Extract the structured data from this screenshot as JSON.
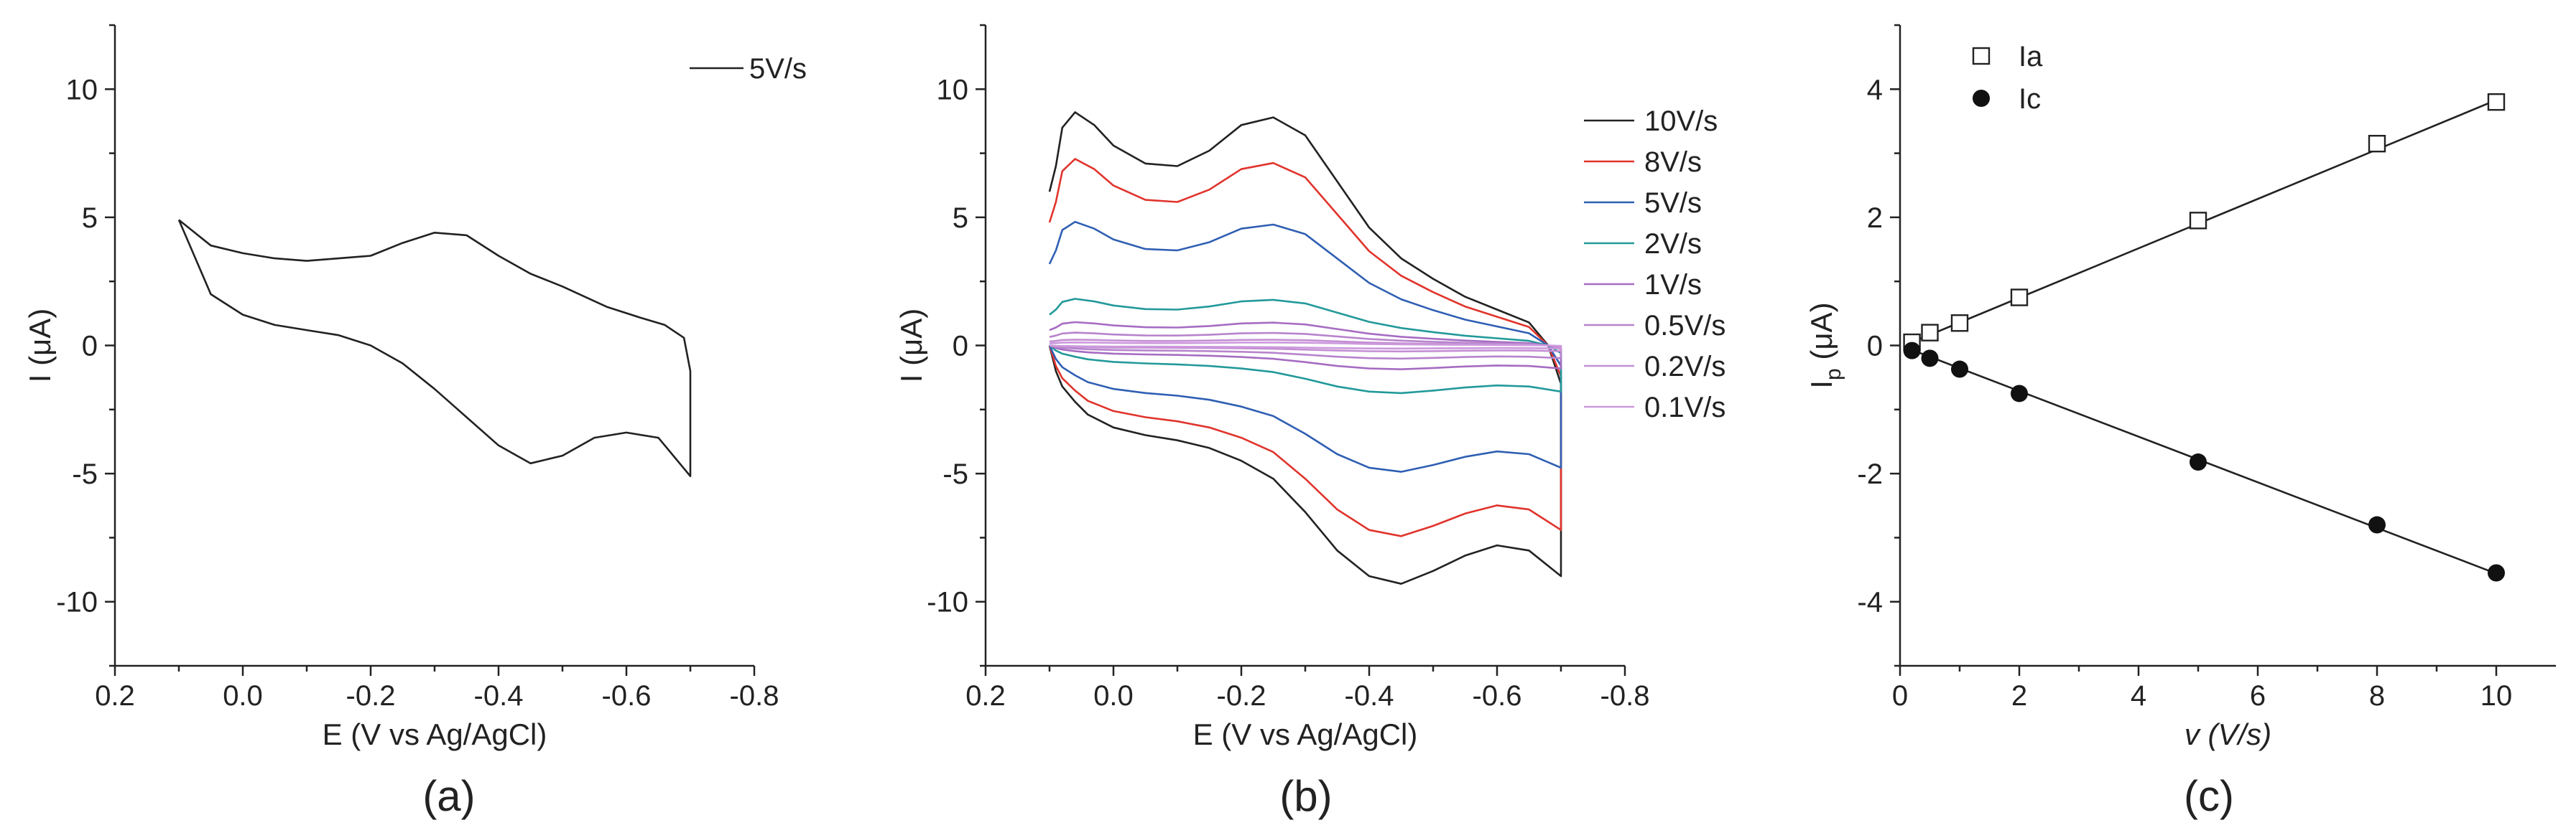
{
  "chart_data": [
    {
      "id": "a",
      "type": "line",
      "panel_label": "(a)",
      "xlabel": "E (V vs Ag/AgCl)",
      "ylabel": "I (μA)",
      "xlim": [
        0.2,
        -0.8
      ],
      "ylim": [
        12.5,
        -12.5
      ],
      "x_ticks": [
        0.2,
        0.0,
        -0.2,
        -0.4,
        -0.6,
        -0.8
      ],
      "x_tick_labels": [
        "0.2",
        "0.0",
        "-0.2",
        "-0.4",
        "-0.6",
        "-0.8"
      ],
      "y_ticks": [
        -10,
        -5,
        0,
        5,
        10
      ],
      "y_tick_labels": [
        "-10",
        "-5",
        "0",
        "5",
        "10"
      ],
      "legend_position": "top-right",
      "series": [
        {
          "name": "5V/s",
          "color": "#222222",
          "x": [
            0.1,
            0.05,
            0.0,
            -0.05,
            -0.1,
            -0.15,
            -0.2,
            -0.25,
            -0.3,
            -0.35,
            -0.4,
            -0.45,
            -0.5,
            -0.55,
            -0.6,
            -0.65,
            -0.7,
            -0.7,
            -0.69,
            -0.66,
            -0.62,
            -0.57,
            -0.5,
            -0.45,
            -0.4,
            -0.35,
            -0.3,
            -0.25,
            -0.2,
            -0.15,
            -0.1,
            -0.05,
            0.0,
            0.05,
            0.1
          ],
          "y": [
            4.9,
            2.0,
            1.2,
            0.8,
            0.6,
            0.4,
            0.0,
            -0.7,
            -1.7,
            -2.8,
            -3.9,
            -4.6,
            -4.3,
            -3.6,
            -3.4,
            -3.6,
            -5.1,
            -1.0,
            0.3,
            0.8,
            1.1,
            1.5,
            2.3,
            2.8,
            3.5,
            4.3,
            4.4,
            4.0,
            3.5,
            3.4,
            3.3,
            3.4,
            3.6,
            3.9,
            4.9
          ]
        }
      ]
    },
    {
      "id": "b",
      "type": "line",
      "panel_label": "(b)",
      "xlabel": "E (V vs Ag/AgCl)",
      "ylabel": "I (μA)",
      "xlim": [
        0.2,
        -0.8
      ],
      "ylim": [
        12.5,
        -12.5
      ],
      "x_ticks": [
        0.2,
        0.0,
        -0.2,
        -0.4,
        -0.6,
        -0.8
      ],
      "x_tick_labels": [
        "0.2",
        "0.0",
        "-0.2",
        "-0.4",
        "-0.6",
        "-0.8"
      ],
      "y_ticks": [
        -10,
        -5,
        0,
        5,
        10
      ],
      "y_tick_labels": [
        "-10",
        "-5",
        "0",
        "5",
        "10"
      ],
      "legend_position": "top-right",
      "base_shape": {
        "upper_x": [
          0.1,
          0.09,
          0.08,
          0.06,
          0.04,
          0.0,
          -0.05,
          -0.1,
          -0.15,
          -0.2,
          -0.25,
          -0.3,
          -0.35,
          -0.4,
          -0.45,
          -0.5,
          -0.55,
          -0.6,
          -0.65,
          -0.7
        ],
        "upper_y": [
          0.0,
          -1.0,
          -1.6,
          -2.2,
          -2.7,
          -3.2,
          -3.5,
          -3.7,
          -4.0,
          -4.5,
          -5.2,
          -6.5,
          -8.0,
          -9.0,
          -9.3,
          -8.8,
          -8.2,
          -7.8,
          -8.0,
          -9.0
        ],
        "lower_x": [
          -0.7,
          -0.7,
          -0.68,
          -0.65,
          -0.6,
          -0.55,
          -0.5,
          -0.45,
          -0.4,
          -0.35,
          -0.3,
          -0.25,
          -0.2,
          -0.15,
          -0.1,
          -0.05,
          0.0,
          0.03,
          0.06,
          0.08,
          0.09,
          0.1
        ],
        "lower_y": [
          -9.0,
          -1.5,
          0.0,
          0.9,
          1.4,
          1.9,
          2.6,
          3.4,
          4.6,
          6.4,
          8.2,
          8.9,
          8.6,
          7.6,
          7.0,
          7.1,
          7.8,
          8.6,
          9.1,
          8.5,
          7.0,
          6.0
        ]
      },
      "series": [
        {
          "name": "10V/s",
          "color": "#222222",
          "scale": 1.0
        },
        {
          "name": "8V/s",
          "color": "#e0342c",
          "scale": 0.8
        },
        {
          "name": "5V/s",
          "color": "#2f5fb3",
          "scale": 0.53
        },
        {
          "name": "2V/s",
          "color": "#23999a",
          "scale": 0.2
        },
        {
          "name": "1V/s",
          "color": "#a66cc2",
          "scale": 0.1
        },
        {
          "name": "0.5V/s",
          "color": "#b784cc",
          "scale": 0.055
        },
        {
          "name": "0.2V/s",
          "color": "#c48fd4",
          "scale": 0.025
        },
        {
          "name": "0.1V/s",
          "color": "#cc99dd",
          "scale": 0.013
        }
      ]
    },
    {
      "id": "c",
      "type": "scatter",
      "panel_label": "(c)",
      "xlabel": "v (V/s)",
      "ylabel_main": "I",
      "ylabel_sub": "p",
      "ylabel_unit": " (μA)",
      "xlim": [
        0,
        11
      ],
      "ylim": [
        5,
        -5
      ],
      "x_ticks": [
        0,
        2,
        4,
        6,
        8,
        10
      ],
      "x_tick_labels": [
        "0",
        "2",
        "4",
        "6",
        "8",
        "10"
      ],
      "y_ticks": [
        -4,
        -2,
        0,
        2,
        4
      ],
      "y_tick_labels": [
        "-4",
        "-2",
        "0",
        "2",
        "4"
      ],
      "legend_position": "top-left",
      "series": [
        {
          "name": "Ia",
          "marker": "open-square",
          "color": "#222222",
          "x": [
            0.2,
            0.5,
            1,
            2,
            5,
            8,
            10
          ],
          "y": [
            0.05,
            0.2,
            0.35,
            0.75,
            1.95,
            3.15,
            3.8
          ],
          "fit": [
            [
              0.2,
              0.05
            ],
            [
              10,
              3.83
            ]
          ]
        },
        {
          "name": "Ic",
          "marker": "filled-circle",
          "color": "#111111",
          "x": [
            0.2,
            0.5,
            1,
            2,
            5,
            8,
            10
          ],
          "y": [
            -0.08,
            -0.2,
            -0.37,
            -0.75,
            -1.82,
            -2.8,
            -3.55
          ],
          "fit": [
            [
              0.2,
              -0.07
            ],
            [
              10,
              -3.56
            ]
          ]
        }
      ]
    }
  ]
}
